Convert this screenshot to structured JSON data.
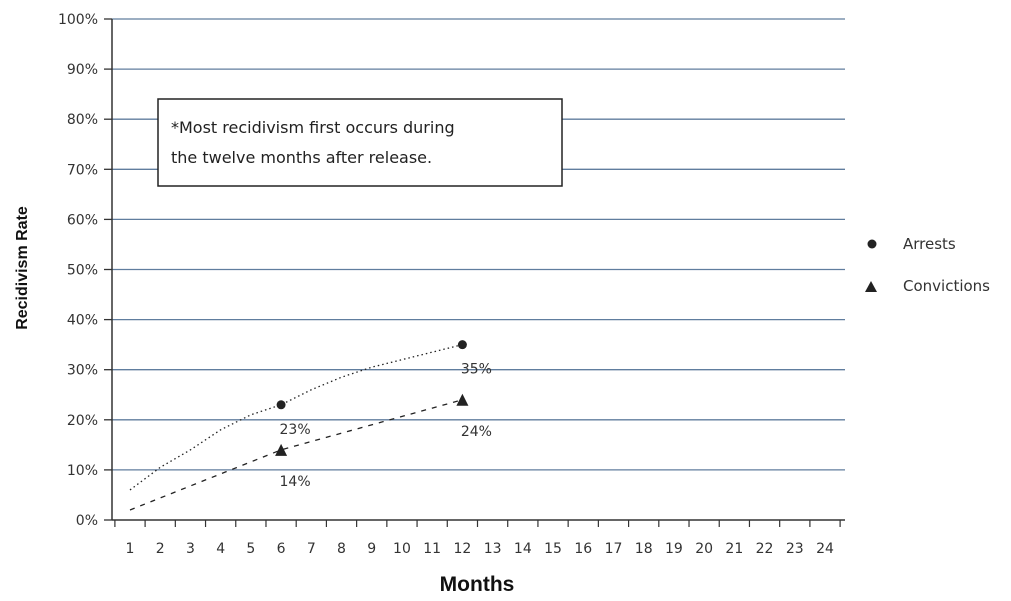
{
  "chart_data": {
    "type": "scatter",
    "title": "",
    "xlabel": "Months",
    "ylabel": "Recidivism Rate",
    "x_ticks": [
      "1",
      "2",
      "3",
      "4",
      "5",
      "6",
      "7",
      "8",
      "9",
      "10",
      "11",
      "12",
      "13",
      "14",
      "15",
      "16",
      "17",
      "18",
      "19",
      "20",
      "21",
      "22",
      "23",
      "24"
    ],
    "y_ticks": [
      "0%",
      "10%",
      "20%",
      "30%",
      "40%",
      "50%",
      "60%",
      "70%",
      "80%",
      "90%",
      "100%"
    ],
    "xlim": [
      1,
      24
    ],
    "ylim": [
      0,
      100
    ],
    "grid": "horizontal",
    "legend_position": "right",
    "series": [
      {
        "name": "Arrests",
        "marker": "circle",
        "x": [
          6,
          12
        ],
        "y": [
          23,
          35
        ],
        "labels": [
          "23%",
          "35%"
        ],
        "trendline": {
          "style": "dotted",
          "x": [
            1,
            2,
            3,
            4,
            5,
            6,
            7,
            8,
            9,
            10,
            11,
            12
          ],
          "y": [
            6,
            10.5,
            14,
            18,
            21,
            23,
            26,
            28.5,
            30.5,
            32,
            33.5,
            35
          ]
        }
      },
      {
        "name": "Convictions",
        "marker": "triangle",
        "x": [
          6,
          12
        ],
        "y": [
          14,
          24
        ],
        "labels": [
          "14%",
          "24%"
        ],
        "trendline": {
          "style": "dashed",
          "x": [
            1,
            6,
            12
          ],
          "y": [
            2,
            14,
            24
          ]
        }
      }
    ],
    "annotation": {
      "lines": [
        "*Most recidivism first occurs during",
        "the twelve months after release."
      ]
    }
  },
  "colors": {
    "gridline": "#607d9e",
    "axis": "#333333",
    "marker": "#222222"
  }
}
